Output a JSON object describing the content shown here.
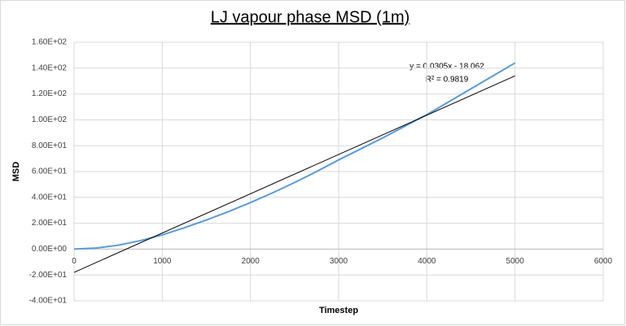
{
  "chart_data": {
    "type": "line",
    "title": "LJ vapour phase MSD (1m)",
    "xlabel": "Timestep",
    "ylabel": "MSD",
    "annotations": [
      "y = 0.0305x - 18.062",
      "R² = 0.9819"
    ],
    "series": [
      {
        "color": "#5b9bd5",
        "x": [
          0,
          250,
          500,
          750,
          1000,
          1250,
          1500,
          1750,
          2000,
          2250,
          2500,
          2750,
          3000,
          3250,
          3500,
          3750,
          4000,
          4250,
          4500,
          4750,
          5000
        ],
        "values": [
          0,
          0.8,
          3,
          6.5,
          11,
          16.5,
          22.5,
          29,
          36,
          43.5,
          51.5,
          60,
          69,
          77.5,
          86,
          95,
          104,
          114,
          124,
          134,
          144
        ]
      },
      {
        "color": "#000000",
        "x": [
          0,
          5000
        ],
        "values": [
          -18,
          134
        ]
      }
    ],
    "xlim": [
      0,
      6000
    ],
    "xticks": [
      0,
      1000,
      2000,
      3000,
      4000,
      5000,
      6000
    ],
    "ylim": [
      -40,
      160
    ],
    "yticks": [
      {
        "value": -40,
        "label": "-4.00E+01"
      },
      {
        "value": -20,
        "label": "-2.00E+01"
      },
      {
        "value": 0,
        "label": "0.00E+00"
      },
      {
        "value": 20,
        "label": "2.00E+01"
      },
      {
        "value": 40,
        "label": "4.00E+01"
      },
      {
        "value": 60,
        "label": "6.00E+01"
      },
      {
        "value": 80,
        "label": "8.00E+01"
      },
      {
        "value": 100,
        "label": "1.00E+02"
      },
      {
        "value": 120,
        "label": "1.20E+02"
      },
      {
        "value": 140,
        "label": "1.40E+02"
      },
      {
        "value": 160,
        "label": "1.60E+02"
      }
    ],
    "grid": true
  }
}
